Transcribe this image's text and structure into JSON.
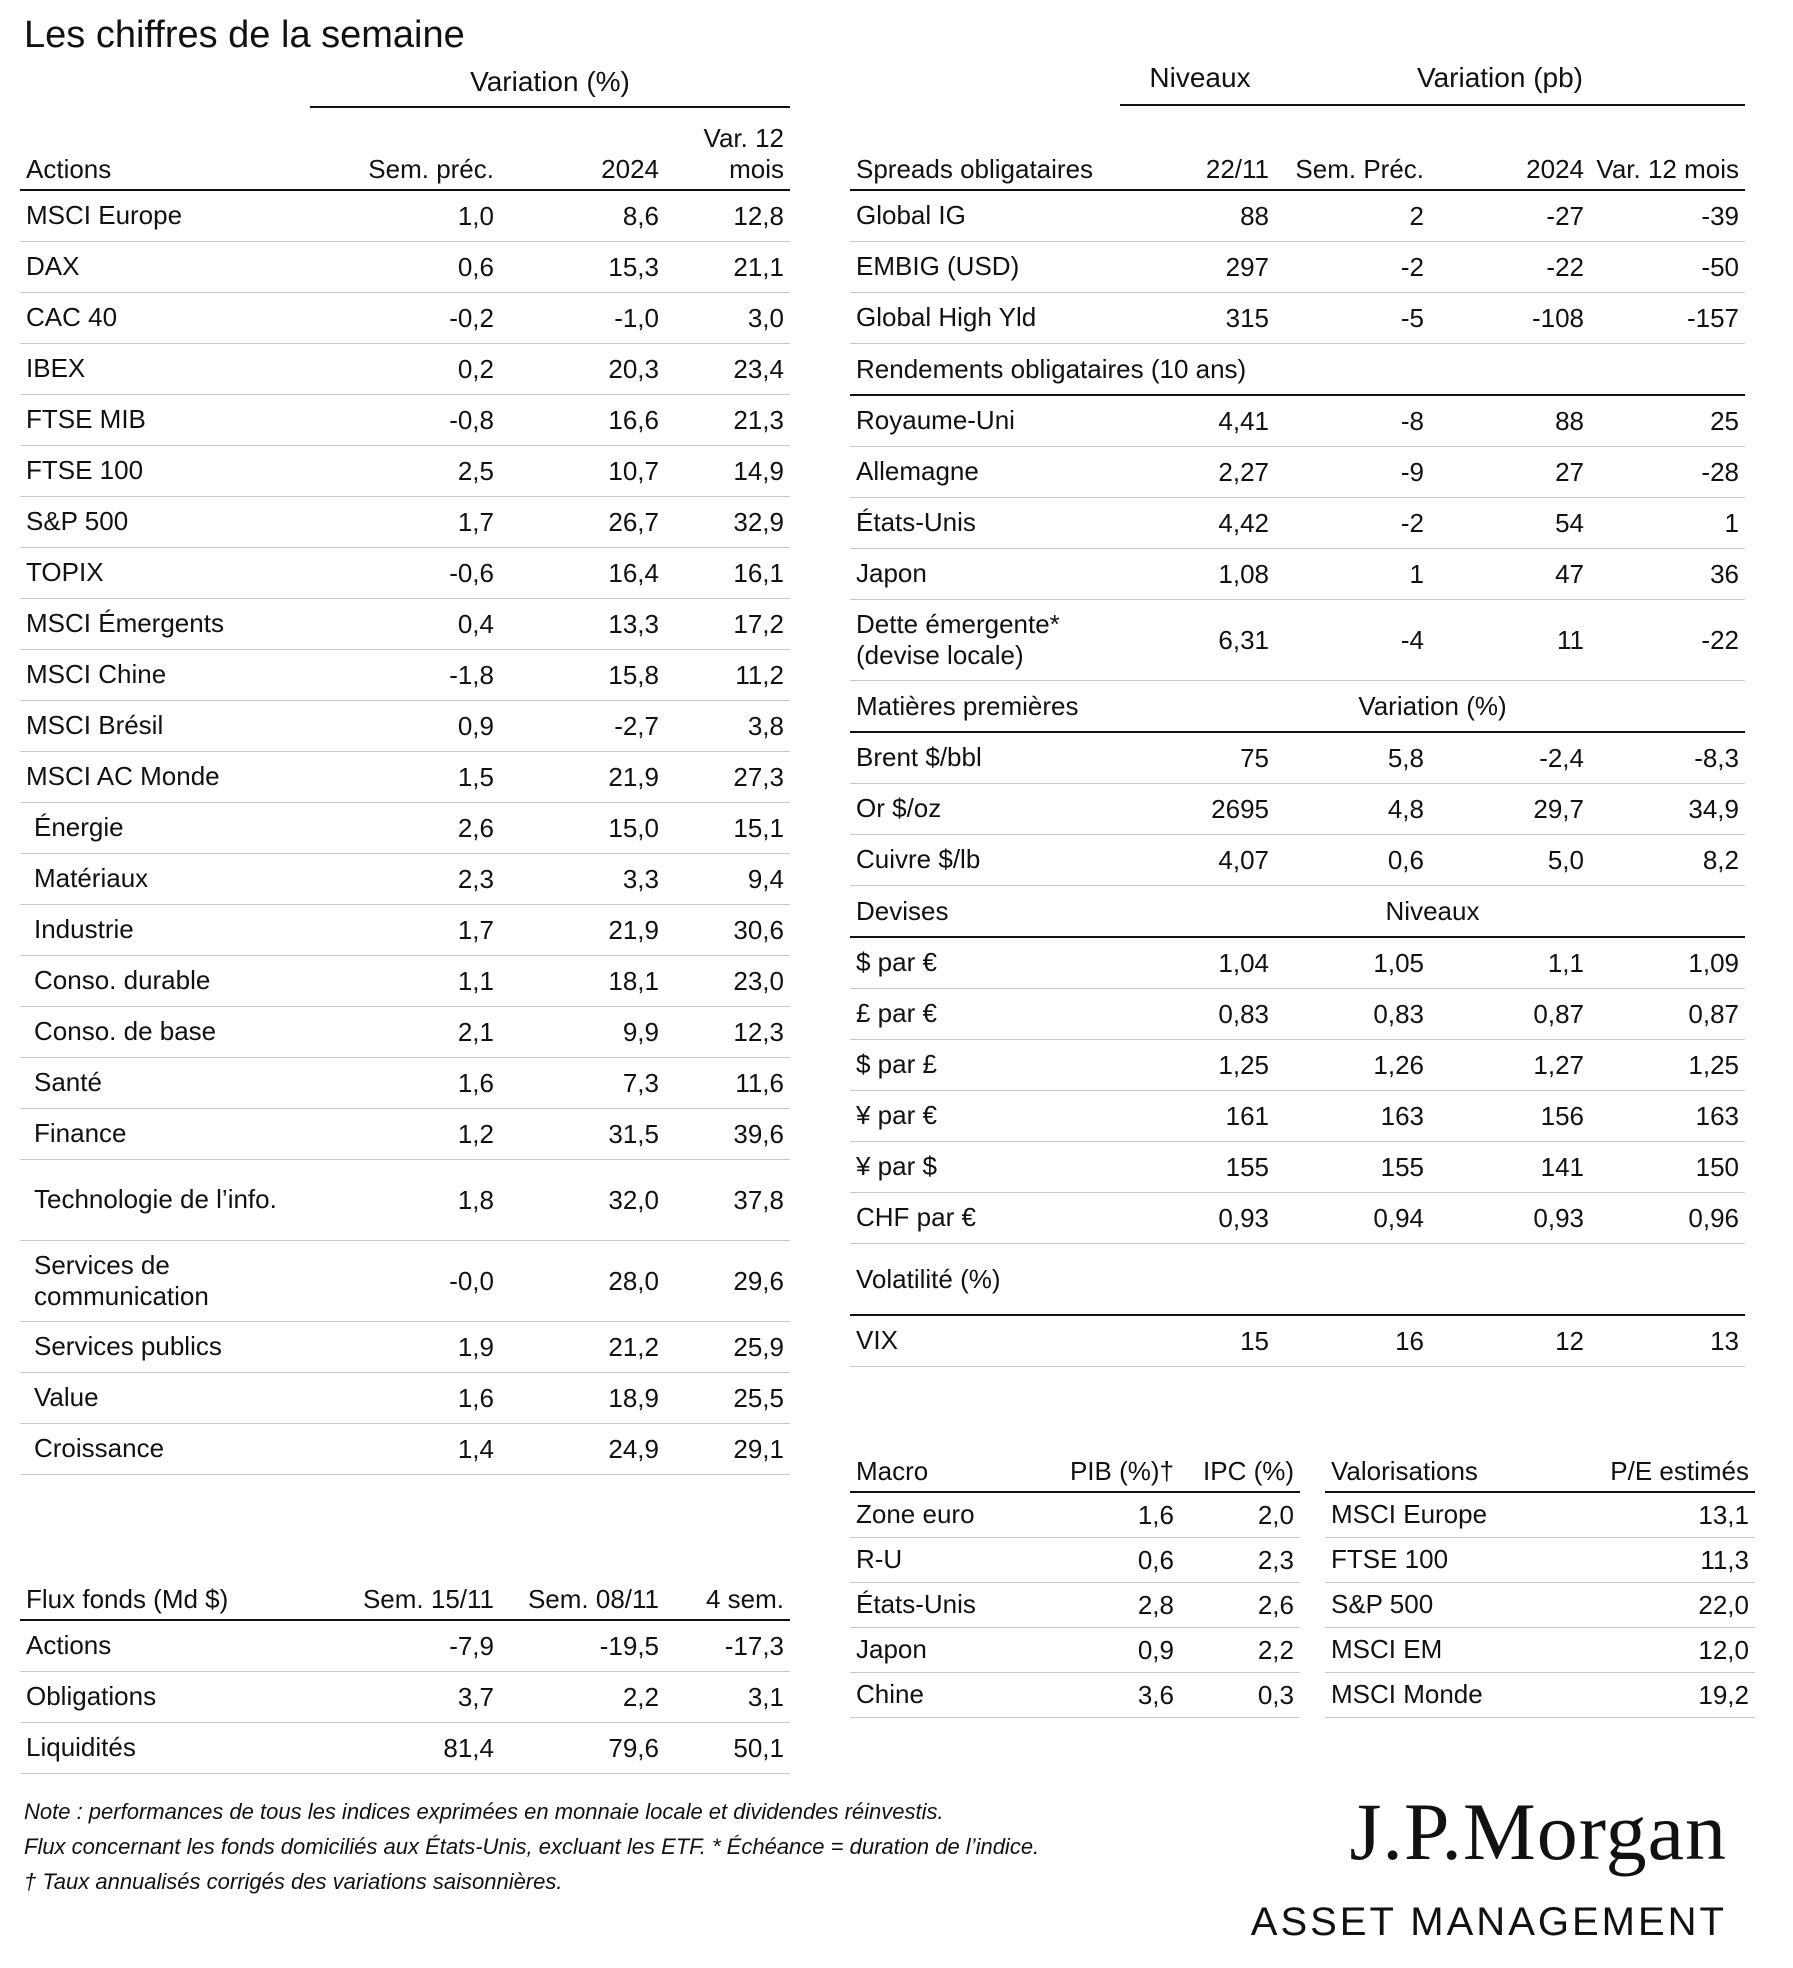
{
  "title": "Les chiffres de la semaine",
  "actions": {
    "group_header": "Variation (%)",
    "headers": [
      "Actions",
      "Sem. préc.",
      "2024",
      "Var. 12 mois"
    ],
    "rows": [
      {
        "name": "MSCI Europe",
        "v": [
          "1,0",
          "8,6",
          "12,8"
        ]
      },
      {
        "name": "DAX",
        "v": [
          "0,6",
          "15,3",
          "21,1"
        ]
      },
      {
        "name": "CAC 40",
        "v": [
          "-0,2",
          "-1,0",
          "3,0"
        ]
      },
      {
        "name": "IBEX",
        "v": [
          "0,2",
          "20,3",
          "23,4"
        ]
      },
      {
        "name": "FTSE MIB",
        "v": [
          "-0,8",
          "16,6",
          "21,3"
        ]
      },
      {
        "name": "FTSE 100",
        "v": [
          "2,5",
          "10,7",
          "14,9"
        ]
      },
      {
        "name": "S&P 500",
        "v": [
          "1,7",
          "26,7",
          "32,9"
        ]
      },
      {
        "name": "TOPIX",
        "v": [
          "-0,6",
          "16,4",
          "16,1"
        ]
      },
      {
        "name": "MSCI Émergents",
        "v": [
          "0,4",
          "13,3",
          "17,2"
        ]
      },
      {
        "name": "MSCI Chine",
        "v": [
          "-1,8",
          "15,8",
          "11,2"
        ]
      },
      {
        "name": "MSCI Brésil",
        "v": [
          "0,9",
          "-2,7",
          "3,8"
        ]
      },
      {
        "name": "MSCI AC Monde",
        "v": [
          "1,5",
          "21,9",
          "27,3"
        ]
      },
      {
        "name": "Énergie",
        "v": [
          "2,6",
          "15,0",
          "15,1"
        ],
        "sub": true
      },
      {
        "name": "Matériaux",
        "v": [
          "2,3",
          "3,3",
          "9,4"
        ],
        "sub": true
      },
      {
        "name": "Industrie",
        "v": [
          "1,7",
          "21,9",
          "30,6"
        ],
        "sub": true
      },
      {
        "name": "Conso. durable",
        "v": [
          "1,1",
          "18,1",
          "23,0"
        ],
        "sub": true
      },
      {
        "name": "Conso. de base",
        "v": [
          "2,1",
          "9,9",
          "12,3"
        ],
        "sub": true
      },
      {
        "name": "Santé",
        "v": [
          "1,6",
          "7,3",
          "11,6"
        ],
        "sub": true
      },
      {
        "name": "Finance",
        "v": [
          "1,2",
          "31,5",
          "39,6"
        ],
        "sub": true
      },
      {
        "name": "Technologie de l’info.",
        "v": [
          "1,8",
          "32,0",
          "37,8"
        ],
        "sub": true,
        "tall": true
      },
      {
        "name": "Services de communication",
        "v": [
          "-0,0",
          "28,0",
          "29,6"
        ],
        "sub": true,
        "tall": true
      },
      {
        "name": "Services publics",
        "v": [
          "1,9",
          "21,2",
          "25,9"
        ],
        "sub": true
      },
      {
        "name": "Value",
        "v": [
          "1,6",
          "18,9",
          "25,5"
        ],
        "sub": true
      },
      {
        "name": "Croissance",
        "v": [
          "1,4",
          "24,9",
          "29,1"
        ],
        "sub": true
      }
    ]
  },
  "flux": {
    "headers": [
      "Flux fonds (Md $)",
      "Sem. 15/11",
      "Sem. 08/11",
      "4 sem."
    ],
    "rows": [
      {
        "name": "Actions",
        "v": [
          "-7,9",
          "-19,5",
          "-17,3"
        ]
      },
      {
        "name": "Obligations",
        "v": [
          "3,7",
          "2,2",
          "3,1"
        ]
      },
      {
        "name": "Liquidités",
        "v": [
          "81,4",
          "79,6",
          "50,1"
        ]
      }
    ]
  },
  "spreads": {
    "group_niveaux": "Niveaux",
    "group_variation": "Variation (pb)",
    "headers": [
      "Spreads obligataires",
      "22/11",
      "Sem. Préc.",
      "2024",
      "Var. 12 mois"
    ],
    "rows": [
      {
        "name": "Global IG",
        "v": [
          "88",
          "2",
          "-27",
          "-39"
        ]
      },
      {
        "name": "EMBIG (USD)",
        "v": [
          "297",
          "-2",
          "-22",
          "-50"
        ]
      },
      {
        "name": "Global High Yld",
        "v": [
          "315",
          "-5",
          "-108",
          "-157"
        ]
      }
    ]
  },
  "rendements": {
    "title": "Rendements obligataires (10 ans)",
    "rows": [
      {
        "name": "Royaume-Uni",
        "v": [
          "4,41",
          "-8",
          "88",
          "25"
        ]
      },
      {
        "name": "Allemagne",
        "v": [
          "2,27",
          "-9",
          "27",
          "-28"
        ]
      },
      {
        "name": "États-Unis",
        "v": [
          "4,42",
          "-2",
          "54",
          "1"
        ]
      },
      {
        "name": "Japon",
        "v": [
          "1,08",
          "1",
          "47",
          "36"
        ]
      },
      {
        "name": "Dette émergente* (devise locale)",
        "v": [
          "6,31",
          "-4",
          "11",
          "-22"
        ],
        "tall": true
      }
    ]
  },
  "matieres": {
    "title": "Matières premières",
    "group": "Variation (%)",
    "rows": [
      {
        "name": "Brent $/bbl",
        "v": [
          "75",
          "5,8",
          "-2,4",
          "-8,3"
        ]
      },
      {
        "name": "Or $/oz",
        "v": [
          "2695",
          "4,8",
          "29,7",
          "34,9"
        ]
      },
      {
        "name": "Cuivre $/lb",
        "v": [
          "4,07",
          "0,6",
          "5,0",
          "8,2"
        ]
      }
    ]
  },
  "devises": {
    "title": "Devises",
    "group": "Niveaux",
    "rows": [
      {
        "name": "$ par €",
        "v": [
          "1,04",
          "1,05",
          "1,1",
          "1,09"
        ]
      },
      {
        "name": "£ par €",
        "v": [
          "0,83",
          "0,83",
          "0,87",
          "0,87"
        ]
      },
      {
        "name": "$ par £",
        "v": [
          "1,25",
          "1,26",
          "1,27",
          "1,25"
        ]
      },
      {
        "name": "¥ par €",
        "v": [
          "161",
          "163",
          "156",
          "163"
        ]
      },
      {
        "name": "¥ par $",
        "v": [
          "155",
          "155",
          "141",
          "150"
        ]
      },
      {
        "name": "CHF par €",
        "v": [
          "0,93",
          "0,94",
          "0,93",
          "0,96"
        ]
      }
    ]
  },
  "volatilite": {
    "title": "Volatilité (%)",
    "rows": [
      {
        "name": "VIX",
        "v": [
          "15",
          "16",
          "12",
          "13"
        ]
      }
    ]
  },
  "macro": {
    "headers": [
      "Macro",
      "PIB (%)†",
      "IPC (%)"
    ],
    "rows": [
      {
        "name": "Zone euro",
        "v": [
          "1,6",
          "2,0"
        ]
      },
      {
        "name": "R-U",
        "v": [
          "0,6",
          "2,3"
        ]
      },
      {
        "name": "États-Unis",
        "v": [
          "2,8",
          "2,6"
        ]
      },
      {
        "name": "Japon",
        "v": [
          "0,9",
          "2,2"
        ]
      },
      {
        "name": "Chine",
        "v": [
          "3,6",
          "0,3"
        ]
      }
    ]
  },
  "valorisations": {
    "headers": [
      "Valorisations",
      "P/E estimés"
    ],
    "rows": [
      {
        "name": "MSCI Europe",
        "v": [
          "13,1"
        ]
      },
      {
        "name": "FTSE 100",
        "v": [
          "11,3"
        ]
      },
      {
        "name": "S&P 500",
        "v": [
          "22,0"
        ]
      },
      {
        "name": "MSCI EM",
        "v": [
          "12,0"
        ]
      },
      {
        "name": "MSCI Monde",
        "v": [
          "19,2"
        ]
      }
    ]
  },
  "notes": [
    "Note : performances de tous les indices exprimées en monnaie locale et dividendes réinvestis.",
    "Flux concernant les fonds domiciliés aux États-Unis, excluant les ETF. * Échéance = duration de l’indice.",
    "† Taux annualisés corrigés des variations saisonnières."
  ],
  "logo": {
    "line1": "J.P.Morgan",
    "line2": "ASSET MANAGEMENT"
  }
}
